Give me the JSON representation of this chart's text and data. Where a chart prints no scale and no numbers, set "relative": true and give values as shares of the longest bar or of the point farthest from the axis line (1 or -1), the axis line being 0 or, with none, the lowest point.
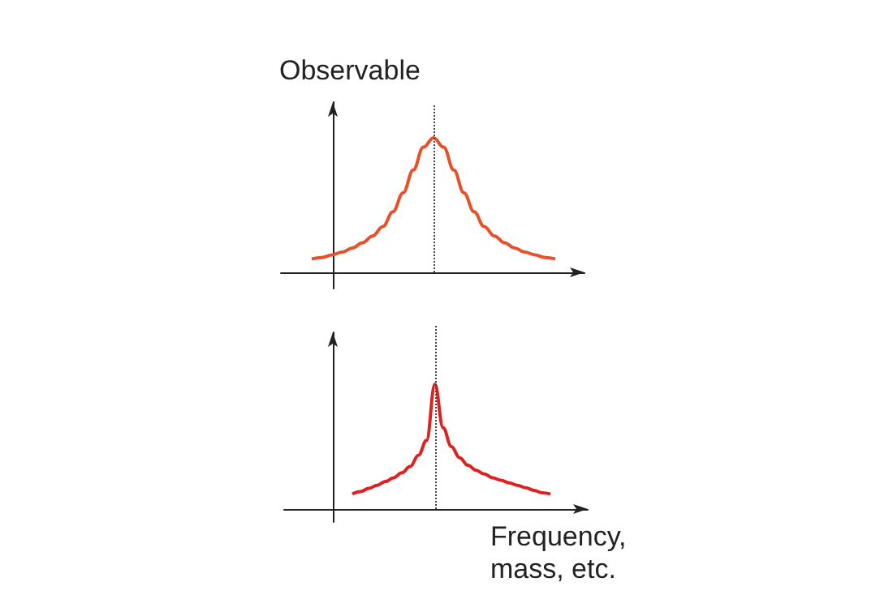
{
  "chart_data": [
    {
      "type": "line",
      "relative": true,
      "ylabel": "Observable",
      "categories": [
        null,
        null,
        null,
        null,
        null,
        null,
        null,
        null,
        null,
        null,
        null,
        null,
        null,
        null,
        null,
        null,
        null,
        null,
        null,
        null,
        null,
        null,
        null,
        null,
        null
      ],
      "series": [
        {
          "color": "#e8502a",
          "values": [
            0.1,
            0.11,
            0.13,
            0.15,
            0.18,
            0.22,
            0.27,
            0.34,
            0.45,
            0.59,
            0.76,
            0.93,
            1.0,
            0.93,
            0.76,
            0.59,
            0.45,
            0.34,
            0.27,
            0.22,
            0.18,
            0.15,
            0.13,
            0.11,
            0.1
          ]
        }
      ],
      "grid": false
    },
    {
      "type": "line",
      "relative": true,
      "xlabel": "Frequency,\nmass, etc.",
      "categories": [
        null,
        null,
        null,
        null,
        null,
        null,
        null,
        null,
        null,
        null,
        null,
        null,
        null,
        null,
        null,
        null,
        null,
        null,
        null,
        null,
        null,
        null,
        null,
        null,
        null
      ],
      "series": [
        {
          "color": "#e0201e",
          "values": [
            0.12,
            0.14,
            0.165,
            0.19,
            0.22,
            0.25,
            0.29,
            0.34,
            0.43,
            0.55,
            1.0,
            0.65,
            0.5,
            0.41,
            0.35,
            0.31,
            0.28,
            0.25,
            0.23,
            0.21,
            0.19,
            0.17,
            0.15,
            0.13,
            0.12
          ]
        }
      ],
      "grid": false
    }
  ]
}
